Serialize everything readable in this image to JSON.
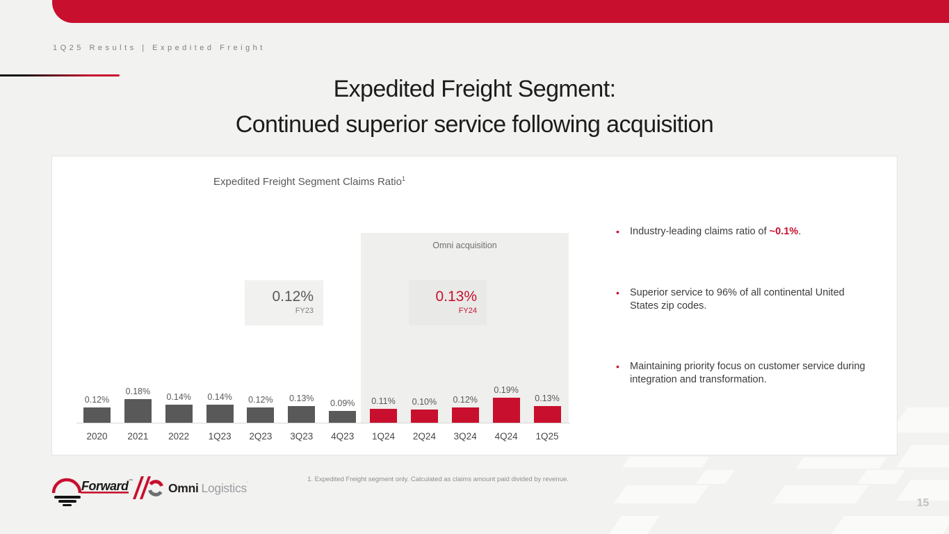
{
  "slide": {
    "eyebrow": "1Q25 Results | Expedited Freight",
    "title_line1": "Expedited Freight Segment:",
    "title_line2": "Continued superior service following acquisition",
    "footnote": "1. Expedited Freight segment only. Calculated as claims amount paid divided by revenue.",
    "page_number": "15"
  },
  "chart_data": {
    "type": "bar",
    "title": "Expedited Freight Segment Claims Ratio",
    "title_superscript": "1",
    "categories": [
      "2020",
      "2021",
      "2022",
      "1Q23",
      "2Q23",
      "3Q23",
      "4Q23",
      "1Q24",
      "2Q24",
      "3Q24",
      "4Q24",
      "1Q25"
    ],
    "values": [
      0.12,
      0.18,
      0.14,
      0.14,
      0.12,
      0.13,
      0.09,
      0.11,
      0.1,
      0.12,
      0.19,
      0.13
    ],
    "labels": [
      "0.12%",
      "0.18%",
      "0.14%",
      "0.14%",
      "0.12%",
      "0.13%",
      "0.09%",
      "0.11%",
      "0.10%",
      "0.12%",
      "0.19%",
      "0.13%"
    ],
    "ylim": [
      0,
      0.2
    ],
    "grid": false,
    "legend": "none",
    "post_acquisition_start_index": 7,
    "colors": {
      "pre_acquisition_bar": "#595959",
      "post_acquisition_bar": "#C8102E"
    },
    "annotations": {
      "region_label": "Omni acquisition",
      "fy23": {
        "value": "0.12%",
        "label": "FY23"
      },
      "fy24": {
        "value": "0.13%",
        "label": "FY24"
      }
    }
  },
  "bullets": [
    {
      "prefix": "Industry-leading claims ratio of ",
      "highlight": "~0.1%",
      "suffix": "."
    },
    {
      "prefix": "Superior service to 96% of all continental United States zip codes.",
      "highlight": "",
      "suffix": ""
    },
    {
      "prefix": "Maintaining priority focus on customer service during integration and transformation.",
      "highlight": "",
      "suffix": ""
    }
  ],
  "footer": {
    "forward_label": "Forward",
    "forward_trademark": "™",
    "omni_bold": "Omni",
    "omni_light": "Logistics",
    "omni_mark": "’"
  },
  "colors": {
    "brand_red": "#C8102E",
    "bar_gray": "#595959",
    "background": "#F2F2F0",
    "card": "#FFFFFF",
    "shade_region": "#EFEFED"
  }
}
